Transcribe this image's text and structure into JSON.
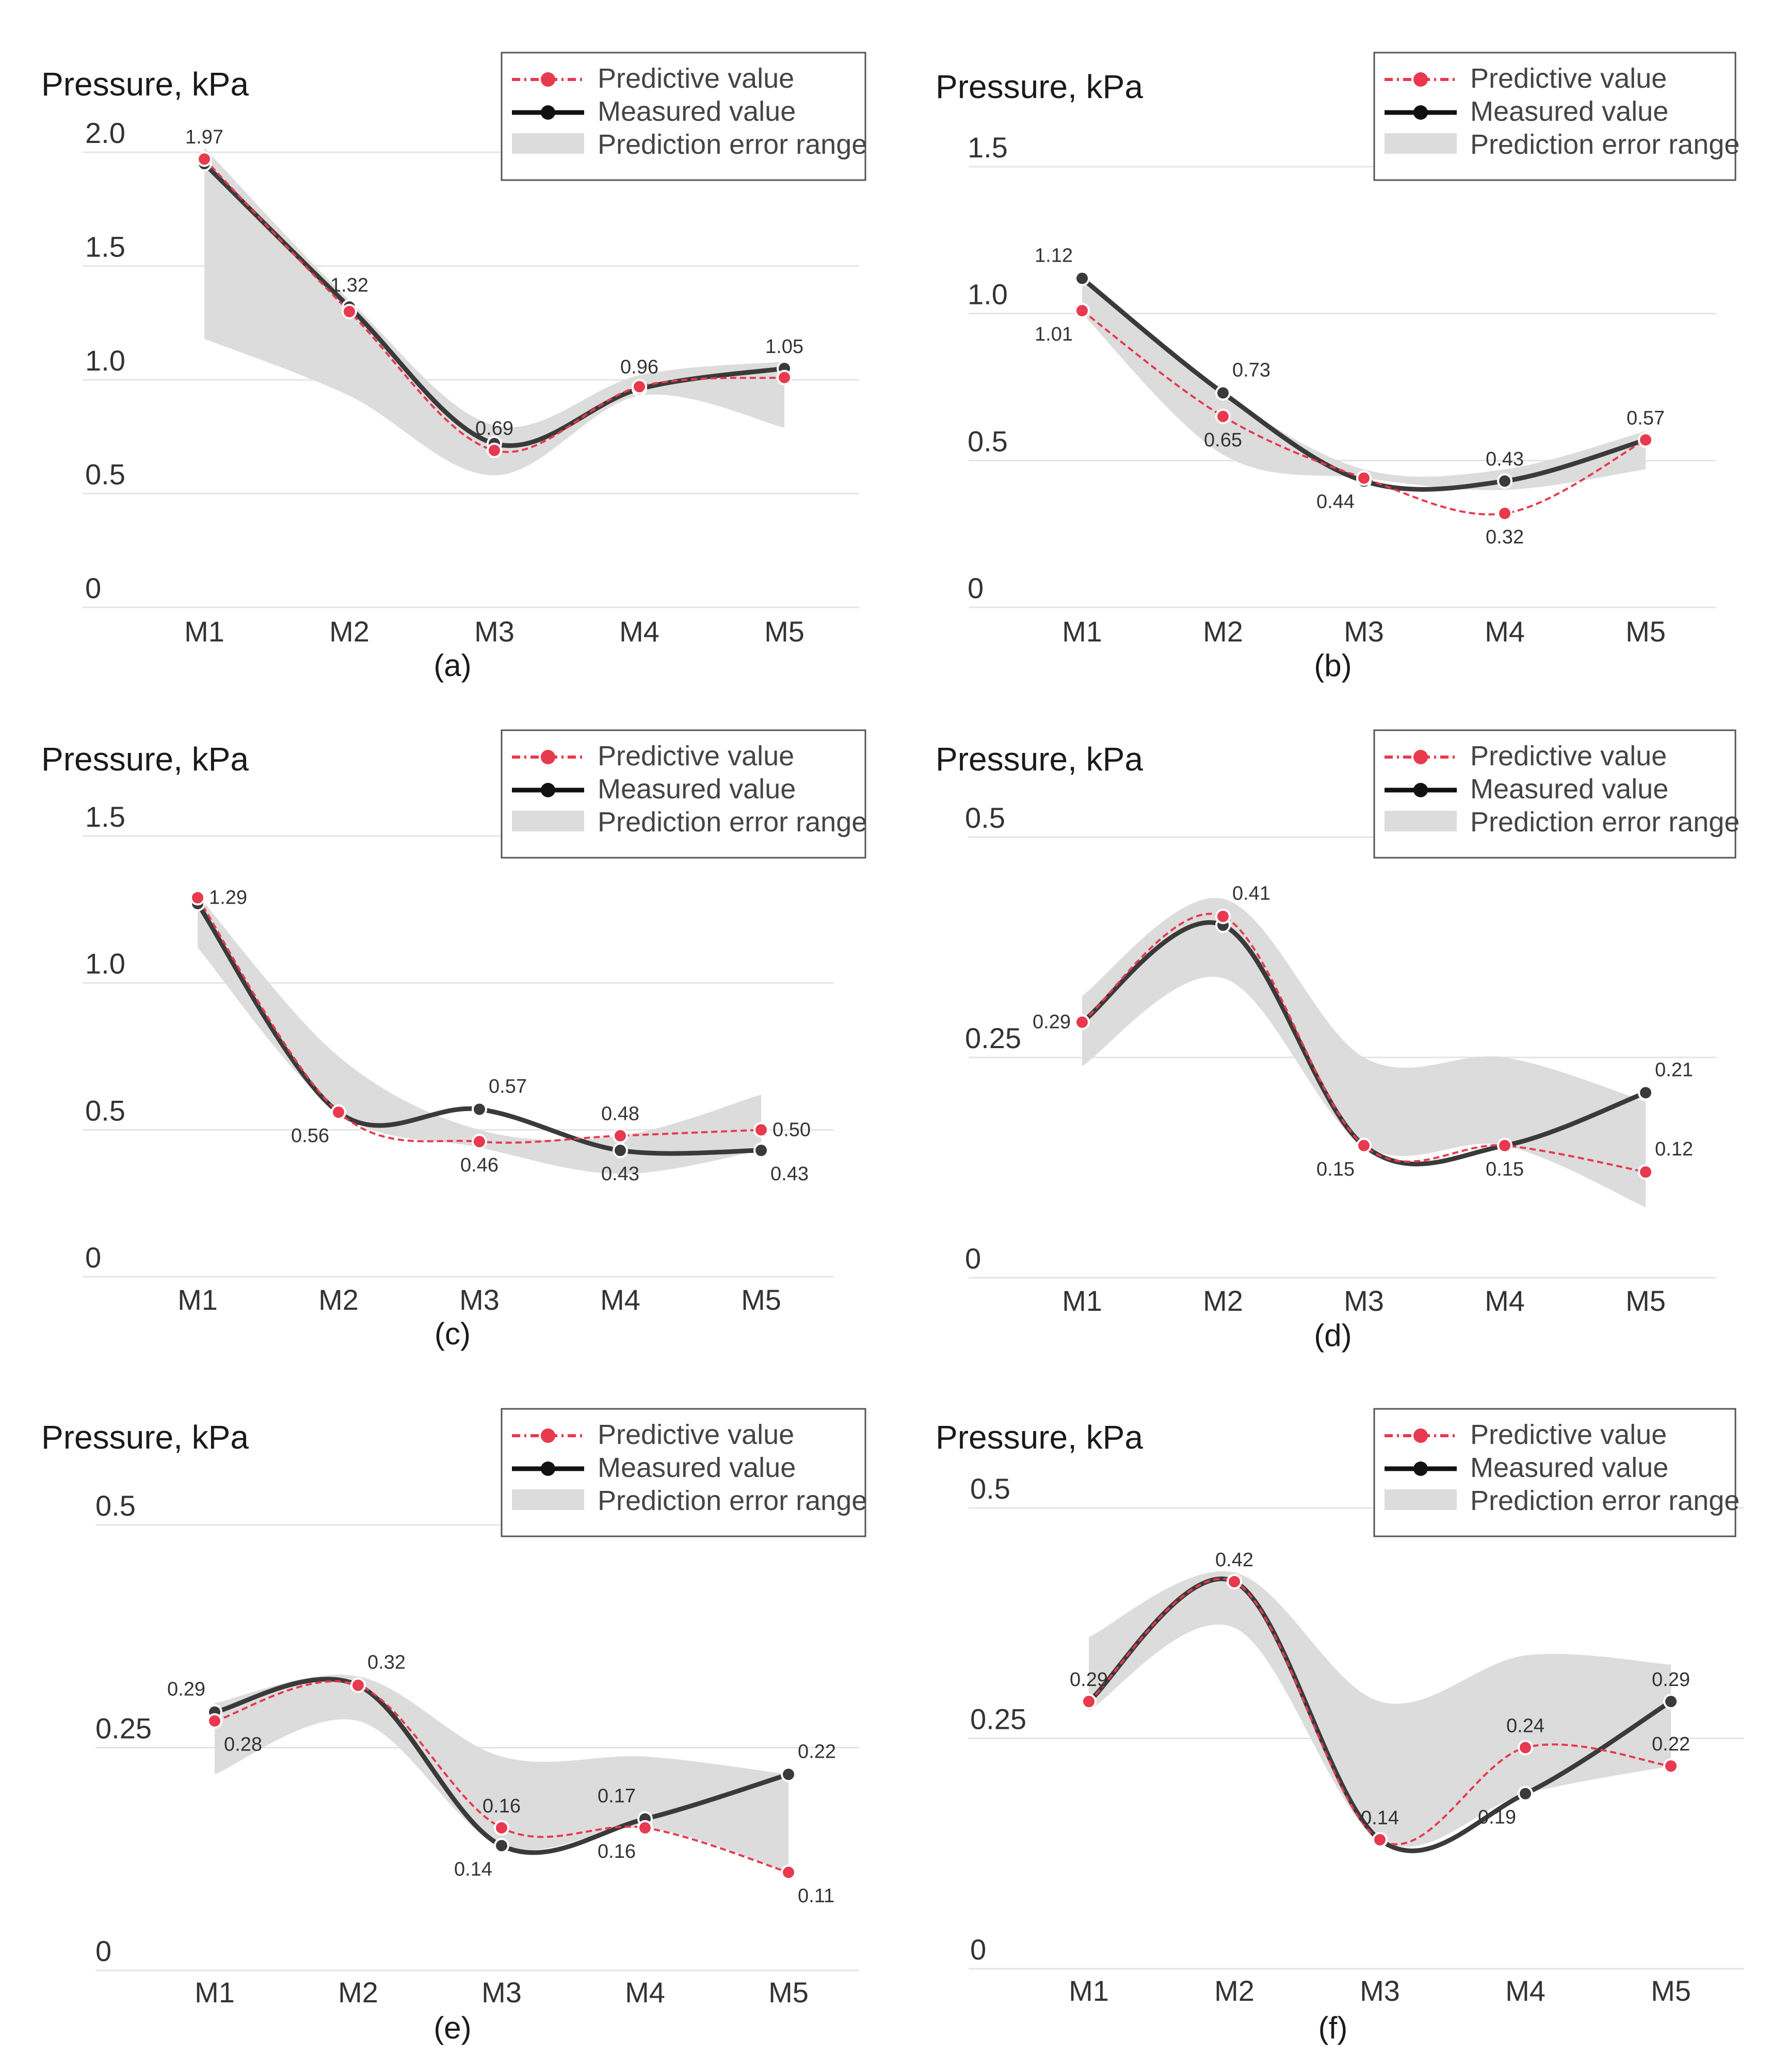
{
  "page": {
    "background": "#ffffff"
  },
  "colors": {
    "predicted": "#e8394e",
    "measured": "#3a3a3a",
    "band": "#dcdcdc",
    "grid": "#e4e4e4"
  },
  "chart_data": [
    {
      "id": "a",
      "type": "line",
      "subtitle": "(a)",
      "ylabel": "Pressure, kPa",
      "categories": [
        "M1",
        "M2",
        "M3",
        "M4",
        "M5"
      ],
      "ylim": [
        0,
        2.0
      ],
      "yticks": [
        "0",
        "0.5",
        "1.0",
        "1.5",
        "2.0"
      ],
      "series": [
        {
          "name": "Predictive value",
          "values": [
            1.97,
            1.3,
            0.69,
            0.97,
            1.01
          ]
        },
        {
          "name": "Measured value",
          "values": [
            1.95,
            1.32,
            0.72,
            0.96,
            1.05
          ]
        }
      ],
      "band": {
        "name": "Prediction error range",
        "lower": [
          1.18,
          0.93,
          0.58,
          0.93,
          0.79
        ],
        "upper": [
          2.02,
          1.35,
          0.8,
          1.02,
          1.08
        ]
      },
      "labels": [
        {
          "text": "1.97",
          "series": 0,
          "index": 0,
          "pos": "above"
        },
        {
          "text": "1.32",
          "series": 1,
          "index": 1,
          "pos": "above"
        },
        {
          "text": "0.69",
          "series": 0,
          "index": 2,
          "pos": "above"
        },
        {
          "text": "0.96",
          "series": 1,
          "index": 3,
          "pos": "above"
        },
        {
          "text": "1.05",
          "series": 1,
          "index": 4,
          "pos": "above"
        }
      ],
      "legend": [
        "Predictive value",
        "Measured value",
        "Prediction error range"
      ]
    },
    {
      "id": "b",
      "type": "line",
      "subtitle": "(b)",
      "ylabel": "Pressure, kPa",
      "categories": [
        "M1",
        "M2",
        "M3",
        "M4",
        "M5"
      ],
      "ylim": [
        0,
        1.5
      ],
      "yticks": [
        "0",
        "0.5",
        "1.0",
        "1.5"
      ],
      "series": [
        {
          "name": "Predictive value",
          "values": [
            1.01,
            0.65,
            0.44,
            0.32,
            0.57
          ]
        },
        {
          "name": "Measured value",
          "values": [
            1.12,
            0.73,
            0.43,
            0.43,
            0.57
          ]
        }
      ],
      "band": {
        "name": "Prediction error range",
        "lower": [
          1.0,
          0.52,
          0.44,
          0.4,
          0.47
        ],
        "upper": [
          1.13,
          0.73,
          0.47,
          0.47,
          0.6
        ]
      },
      "labels": [
        {
          "text": "1.12",
          "series": 1,
          "index": 0,
          "pos": "above-left"
        },
        {
          "text": "1.01",
          "series": 0,
          "index": 0,
          "pos": "below-left"
        },
        {
          "text": "0.73",
          "series": 1,
          "index": 1,
          "pos": "above-right"
        },
        {
          "text": "0.65",
          "series": 0,
          "index": 1,
          "pos": "below"
        },
        {
          "text": "0.44",
          "series": 0,
          "index": 2,
          "pos": "below-left"
        },
        {
          "text": "0.43",
          "series": 1,
          "index": 3,
          "pos": "above"
        },
        {
          "text": "0.32",
          "series": 0,
          "index": 3,
          "pos": "below"
        },
        {
          "text": "0.57",
          "series": 1,
          "index": 4,
          "pos": "above"
        }
      ],
      "legend": [
        "Predictive value",
        "Measured value",
        "Prediction error range"
      ]
    },
    {
      "id": "c",
      "type": "line",
      "subtitle": "(c)",
      "ylabel": "Pressure, kPa",
      "categories": [
        "M1",
        "M2",
        "M3",
        "M4",
        "M5"
      ],
      "ylim": [
        0,
        1.5
      ],
      "yticks": [
        "0",
        "0.5",
        "1.0",
        "1.5"
      ],
      "series": [
        {
          "name": "Predictive value",
          "values": [
            1.29,
            0.56,
            0.46,
            0.48,
            0.5
          ]
        },
        {
          "name": "Measured value",
          "values": [
            1.27,
            0.56,
            0.57,
            0.43,
            0.43
          ]
        }
      ],
      "band": {
        "name": "Prediction error range",
        "lower": [
          1.12,
          0.56,
          0.44,
          0.35,
          0.43
        ],
        "upper": [
          1.3,
          0.75,
          0.5,
          0.48,
          0.62
        ]
      },
      "labels": [
        {
          "text": "1.29",
          "series": 0,
          "index": 0,
          "pos": "right"
        },
        {
          "text": "0.56",
          "series": 0,
          "index": 1,
          "pos": "below-left"
        },
        {
          "text": "0.57",
          "series": 1,
          "index": 2,
          "pos": "above-right"
        },
        {
          "text": "0.46",
          "series": 0,
          "index": 2,
          "pos": "below"
        },
        {
          "text": "0.48",
          "series": 0,
          "index": 3,
          "pos": "above"
        },
        {
          "text": "0.43",
          "series": 1,
          "index": 3,
          "pos": "below"
        },
        {
          "text": "0.50",
          "series": 0,
          "index": 4,
          "pos": "right"
        },
        {
          "text": "0.43",
          "series": 1,
          "index": 4,
          "pos": "below-right"
        }
      ],
      "legend": [
        "Predictive value",
        "Measured value",
        "Prediction error range"
      ]
    },
    {
      "id": "d",
      "type": "line",
      "subtitle": "(d)",
      "ylabel": "Pressure, kPa",
      "categories": [
        "M1",
        "M2",
        "M3",
        "M4",
        "M5"
      ],
      "ylim": [
        0,
        0.5
      ],
      "yticks": [
        "0",
        "0.25",
        "0.5"
      ],
      "series": [
        {
          "name": "Predictive value",
          "values": [
            0.29,
            0.41,
            0.15,
            0.15,
            0.12
          ]
        },
        {
          "name": "Measured value",
          "values": [
            0.29,
            0.4,
            0.15,
            0.15,
            0.21
          ]
        }
      ],
      "band": {
        "name": "Prediction error range",
        "lower": [
          0.24,
          0.34,
          0.15,
          0.15,
          0.08
        ],
        "upper": [
          0.32,
          0.43,
          0.25,
          0.25,
          0.2
        ]
      },
      "labels": [
        {
          "text": "0.29",
          "series": 0,
          "index": 0,
          "pos": "left"
        },
        {
          "text": "0.41",
          "series": 0,
          "index": 1,
          "pos": "above-right"
        },
        {
          "text": "0.15",
          "series": 0,
          "index": 2,
          "pos": "below-left"
        },
        {
          "text": "0.15",
          "series": 0,
          "index": 3,
          "pos": "below"
        },
        {
          "text": "0.21",
          "series": 1,
          "index": 4,
          "pos": "above-right"
        },
        {
          "text": "0.12",
          "series": 0,
          "index": 4,
          "pos": "above-right"
        }
      ],
      "legend": [
        "Predictive value",
        "Measured value",
        "Prediction error range"
      ]
    },
    {
      "id": "e",
      "type": "line",
      "subtitle": "(e)",
      "ylabel": "Pressure, kPa",
      "categories": [
        "M1",
        "M2",
        "M3",
        "M4",
        "M5"
      ],
      "ylim": [
        0,
        0.5
      ],
      "yticks": [
        "0",
        "0.25",
        "0.5"
      ],
      "series": [
        {
          "name": "Predictive value",
          "values": [
            0.28,
            0.32,
            0.16,
            0.16,
            0.11
          ]
        },
        {
          "name": "Measured value",
          "values": [
            0.29,
            0.32,
            0.14,
            0.17,
            0.22
          ]
        }
      ],
      "band": {
        "name": "Prediction error range",
        "lower": [
          0.22,
          0.28,
          0.14,
          0.16,
          0.11
        ],
        "upper": [
          0.3,
          0.33,
          0.24,
          0.24,
          0.22
        ]
      },
      "labels": [
        {
          "text": "0.29",
          "series": 1,
          "index": 0,
          "pos": "above-left"
        },
        {
          "text": "0.28",
          "series": 0,
          "index": 0,
          "pos": "below-right"
        },
        {
          "text": "0.32",
          "series": 0,
          "index": 1,
          "pos": "above-right"
        },
        {
          "text": "0.16",
          "series": 0,
          "index": 2,
          "pos": "above"
        },
        {
          "text": "0.14",
          "series": 1,
          "index": 2,
          "pos": "below-left"
        },
        {
          "text": "0.17",
          "series": 1,
          "index": 3,
          "pos": "above-left"
        },
        {
          "text": "0.16",
          "series": 0,
          "index": 3,
          "pos": "below-left"
        },
        {
          "text": "0.22",
          "series": 1,
          "index": 4,
          "pos": "above-right"
        },
        {
          "text": "0.11",
          "series": 0,
          "index": 4,
          "pos": "below-right"
        }
      ],
      "legend": [
        "Predictive value",
        "Measured value",
        "Prediction error range"
      ]
    },
    {
      "id": "f",
      "type": "line",
      "subtitle": "(f)",
      "ylabel": "Pressure, kPa",
      "categories": [
        "M1",
        "M2",
        "M3",
        "M4",
        "M5"
      ],
      "ylim": [
        0,
        0.5
      ],
      "yticks": [
        "0",
        "0.25",
        "0.5"
      ],
      "series": [
        {
          "name": "Predictive value",
          "values": [
            0.29,
            0.42,
            0.14,
            0.24,
            0.22
          ]
        },
        {
          "name": "Measured value",
          "values": [
            0.29,
            0.42,
            0.14,
            0.19,
            0.29
          ]
        }
      ],
      "band": {
        "name": "Prediction error range",
        "lower": [
          0.28,
          0.37,
          0.14,
          0.19,
          0.22
        ],
        "upper": [
          0.36,
          0.43,
          0.29,
          0.34,
          0.33
        ]
      },
      "labels": [
        {
          "text": "0.29",
          "series": 0,
          "index": 0,
          "pos": "above"
        },
        {
          "text": "0.42",
          "series": 0,
          "index": 1,
          "pos": "above"
        },
        {
          "text": "0.14",
          "series": 0,
          "index": 2,
          "pos": "above"
        },
        {
          "text": "0.24",
          "series": 0,
          "index": 3,
          "pos": "above"
        },
        {
          "text": "0.19",
          "series": 1,
          "index": 3,
          "pos": "below-left"
        },
        {
          "text": "0.29",
          "series": 1,
          "index": 4,
          "pos": "above"
        },
        {
          "text": "0.22",
          "series": 0,
          "index": 4,
          "pos": "above"
        }
      ],
      "legend": [
        "Predictive value",
        "Measured value",
        "Prediction error range"
      ]
    }
  ]
}
